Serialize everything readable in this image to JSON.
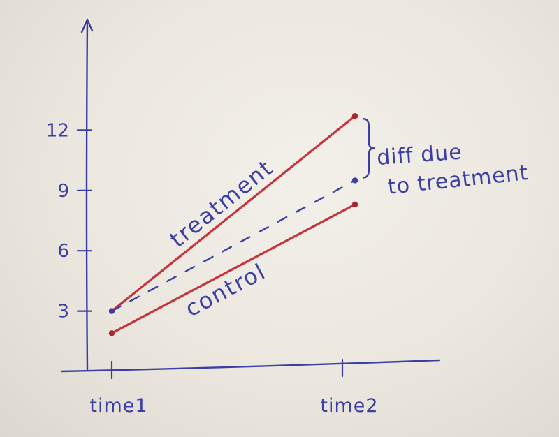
{
  "chart_data": {
    "type": "line",
    "x": [
      "time1",
      "time2"
    ],
    "ylim": [
      0,
      16
    ],
    "yticks": [
      3,
      6,
      9,
      12
    ],
    "series": [
      {
        "name": "treatment",
        "values": [
          3.0,
          12.7
        ],
        "color": "#c8323a",
        "style": "solid"
      },
      {
        "name": "control",
        "values": [
          1.9,
          8.3
        ],
        "color": "#c8323a",
        "style": "solid"
      },
      {
        "name": "",
        "values": [
          3.0,
          9.5
        ],
        "color": "#3b3fa4",
        "style": "dashed"
      }
    ],
    "annotation": {
      "text": [
        "diff due",
        "to treatment"
      ],
      "brace_color": "#3b3fa4"
    },
    "grid": false,
    "title": "",
    "xlabel": "",
    "ylabel": "",
    "axis_color": "#3b3fa4"
  }
}
